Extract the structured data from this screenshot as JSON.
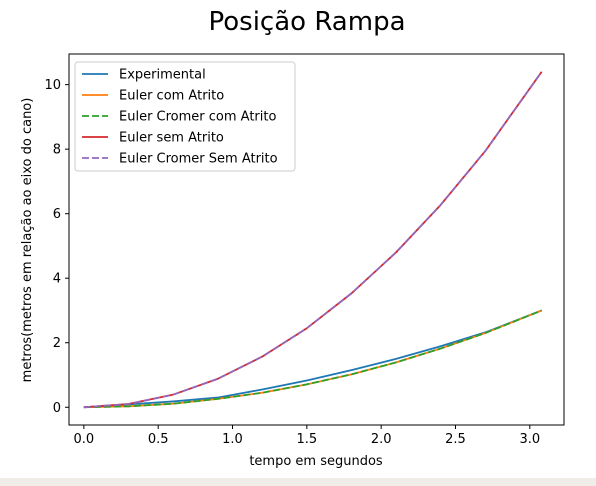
{
  "chart_data": {
    "type": "line",
    "title": "Posição Rampa",
    "xlabel": "tempo em segundos",
    "ylabel": "metros(metros em relação ao eixo do cano)",
    "xlim": [
      -0.1,
      3.23
    ],
    "ylim": [
      -0.55,
      10.95
    ],
    "xticks": [
      0.0,
      0.5,
      1.0,
      1.5,
      2.0,
      2.5,
      3.0
    ],
    "xtick_labels": [
      "0.0",
      "0.5",
      "1.0",
      "1.5",
      "2.0",
      "2.5",
      "3.0"
    ],
    "yticks": [
      0,
      2,
      4,
      6,
      8,
      10
    ],
    "ytick_labels": [
      "0",
      "2",
      "4",
      "6",
      "8",
      "10"
    ],
    "grid": false,
    "legend_position": "top-left",
    "series": [
      {
        "name": "Experimental",
        "color": "#1f77b4",
        "dash": "solid",
        "x": [
          0.0,
          0.3,
          0.6,
          0.9,
          1.2,
          1.5,
          1.8,
          2.1,
          2.4,
          2.7,
          3.08
        ],
        "y": [
          0.0,
          0.09,
          0.18,
          0.3,
          0.55,
          0.83,
          1.15,
          1.5,
          1.89,
          2.32,
          3.0
        ]
      },
      {
        "name": "Euler com Atrito",
        "color": "#ff7f0e",
        "dash": "solid",
        "x": [
          0.0,
          0.3,
          0.6,
          0.9,
          1.2,
          1.5,
          1.8,
          2.1,
          2.4,
          2.7,
          3.08
        ],
        "y": [
          0.0,
          0.03,
          0.11,
          0.26,
          0.45,
          0.71,
          1.02,
          1.39,
          1.82,
          2.3,
          3.0
        ]
      },
      {
        "name": "Euler Cromer com Atrito",
        "color": "#2ca02c",
        "dash": "dashed",
        "x": [
          0.0,
          0.3,
          0.6,
          0.9,
          1.2,
          1.5,
          1.8,
          2.1,
          2.4,
          2.7,
          3.08
        ],
        "y": [
          0.0,
          0.03,
          0.11,
          0.26,
          0.45,
          0.71,
          1.02,
          1.39,
          1.82,
          2.3,
          3.0
        ]
      },
      {
        "name": "Euler sem Atrito",
        "color": "#d62728",
        "dash": "solid",
        "x": [
          0.0,
          0.3,
          0.6,
          0.9,
          1.2,
          1.5,
          1.8,
          2.1,
          2.4,
          2.7,
          3.08
        ],
        "y": [
          0.0,
          0.1,
          0.39,
          0.88,
          1.57,
          2.45,
          3.53,
          4.8,
          6.27,
          7.94,
          10.4
        ]
      },
      {
        "name": "Euler Cromer Sem Atrito",
        "color": "#9467bd",
        "dash": "dashed",
        "x": [
          0.0,
          0.3,
          0.6,
          0.9,
          1.2,
          1.5,
          1.8,
          2.1,
          2.4,
          2.7,
          3.08
        ],
        "y": [
          0.0,
          0.1,
          0.39,
          0.88,
          1.57,
          2.45,
          3.53,
          4.8,
          6.27,
          7.94,
          10.4
        ]
      }
    ]
  }
}
